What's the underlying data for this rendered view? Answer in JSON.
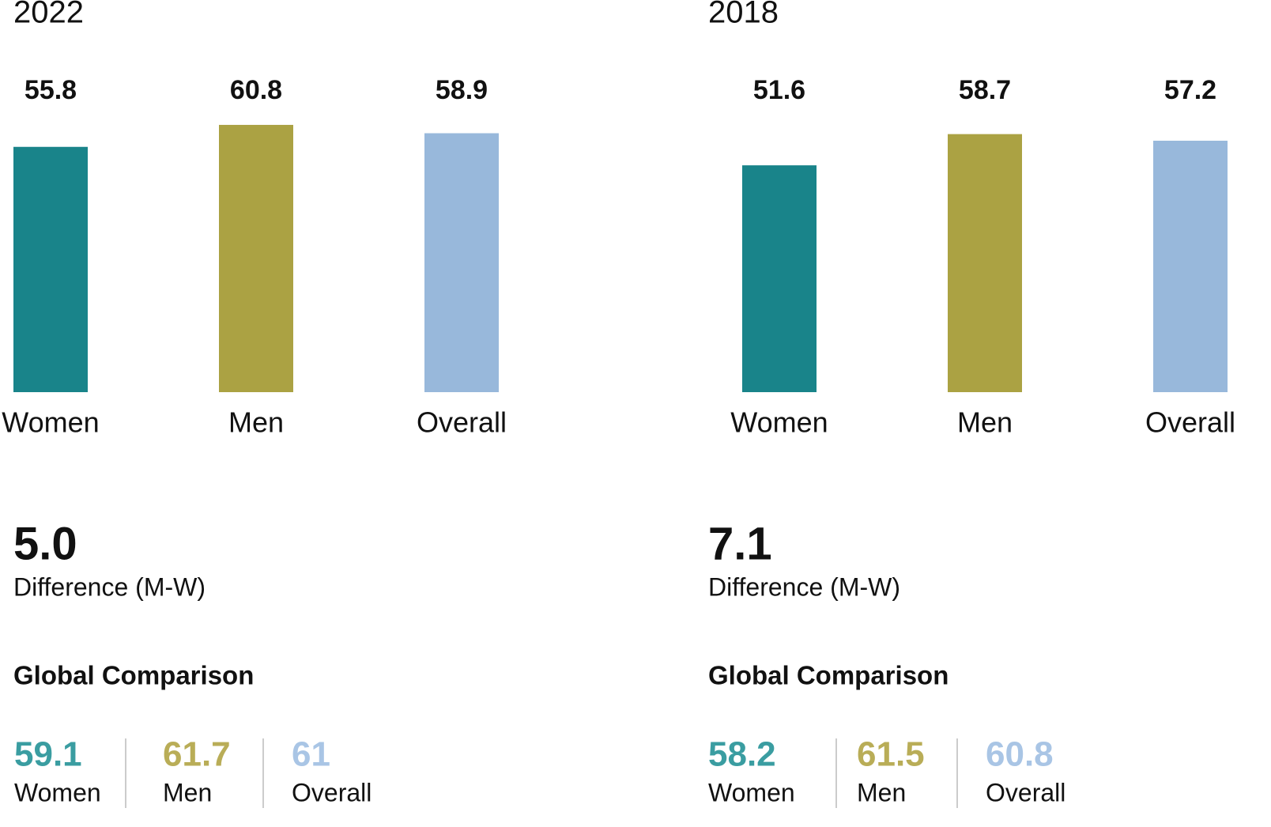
{
  "chart_data": [
    {
      "type": "bar",
      "title": "2022",
      "categories": [
        "Women",
        "Men",
        "Overall"
      ],
      "values": [
        55.8,
        60.8,
        58.9
      ],
      "colors": [
        "#19848a",
        "#aba243",
        "#98b8db"
      ]
    },
    {
      "type": "bar",
      "title": "2018",
      "categories": [
        "Women",
        "Men",
        "Overall"
      ],
      "values": [
        51.6,
        58.7,
        57.2
      ],
      "colors": [
        "#19848a",
        "#aba243",
        "#98b8db"
      ]
    }
  ],
  "comparison": [
    {
      "difference": "5.0",
      "difference_label": "Difference (M-W)",
      "heading": "Global Comparison",
      "stats": [
        {
          "value": "59.1",
          "label": "Women",
          "color": "#3a9da1"
        },
        {
          "value": "61.7",
          "label": "Men",
          "color": "#b9ad57"
        },
        {
          "value": "61",
          "label": "Overall",
          "color": "#a9c5e5"
        }
      ]
    },
    {
      "difference": "7.1",
      "difference_label": "Difference (M-W)",
      "heading": "Global Comparison",
      "stats": [
        {
          "value": "58.2",
          "label": "Women",
          "color": "#3a9da1"
        },
        {
          "value": "61.5",
          "label": "Men",
          "color": "#b9ad57"
        },
        {
          "value": "60.8",
          "label": "Overall",
          "color": "#a9c5e5"
        }
      ]
    }
  ]
}
